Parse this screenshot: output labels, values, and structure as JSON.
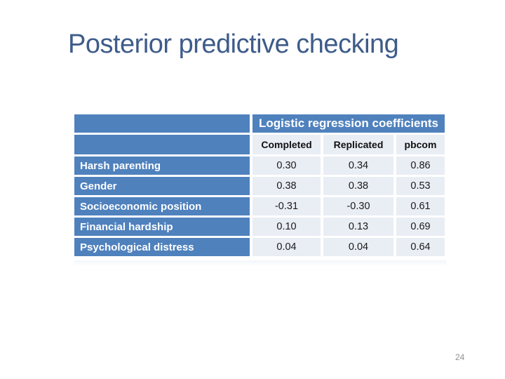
{
  "slide": {
    "title": "Posterior predictive checking",
    "page_number": "24"
  },
  "colors": {
    "title_color": "#3e5c8a",
    "table_blue": "#4f81bd",
    "cell_light": "#e9edf4",
    "header_text": "#ffffff",
    "value_text": "#1a1a1a",
    "page_number_color": "#8f8f8f"
  },
  "table": {
    "header": "Logistic regression coefficients",
    "columns": [
      "Completed",
      "Replicated",
      "pbcom"
    ],
    "rows": [
      {
        "label": "Harsh parenting",
        "values": [
          "0.30",
          "0.34",
          "0.86"
        ]
      },
      {
        "label": "Gender",
        "values": [
          "0.38",
          "0.38",
          "0.53"
        ]
      },
      {
        "label": "Socioeconomic position",
        "values": [
          "-0.31",
          "-0.30",
          "0.61"
        ]
      },
      {
        "label": "Financial hardship",
        "values": [
          "0.10",
          "0.13",
          "0.69"
        ]
      },
      {
        "label": "Psychological distress",
        "values": [
          "0.04",
          "0.04",
          "0.64"
        ]
      }
    ]
  }
}
